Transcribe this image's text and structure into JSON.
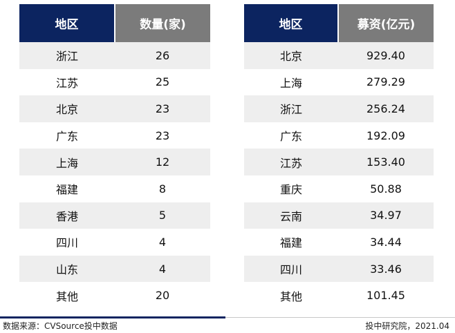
{
  "left_table": {
    "headers": [
      "地区",
      "数量(家)"
    ],
    "rows": [
      [
        "浙江",
        "26"
      ],
      [
        "江苏",
        "25"
      ],
      [
        "北京",
        "23"
      ],
      [
        "广东",
        "23"
      ],
      [
        "上海",
        "12"
      ],
      [
        "福建",
        "8"
      ],
      [
        "香港",
        "5"
      ],
      [
        "四川",
        "4"
      ],
      [
        "山东",
        "4"
      ],
      [
        "其他",
        "20"
      ]
    ]
  },
  "right_table": {
    "headers": [
      "地区",
      "募资(亿元)"
    ],
    "rows": [
      [
        "北京",
        "929.40"
      ],
      [
        "上海",
        "279.29"
      ],
      [
        "浙江",
        "256.24"
      ],
      [
        "广东",
        "192.09"
      ],
      [
        "江苏",
        "153.40"
      ],
      [
        "重庆",
        "50.88"
      ],
      [
        "云南",
        "34.97"
      ],
      [
        "福建",
        "34.44"
      ],
      [
        "四川",
        "33.46"
      ],
      [
        "其他",
        "101.45"
      ]
    ]
  },
  "footer": {
    "source": "数据来源：CVSource投中数据",
    "credit": "投中研究院，2021.04"
  },
  "colors": {
    "header_dark": "#0c2460",
    "header_gray": "#7b7b7b",
    "row_stripe": "#eeeeee"
  }
}
